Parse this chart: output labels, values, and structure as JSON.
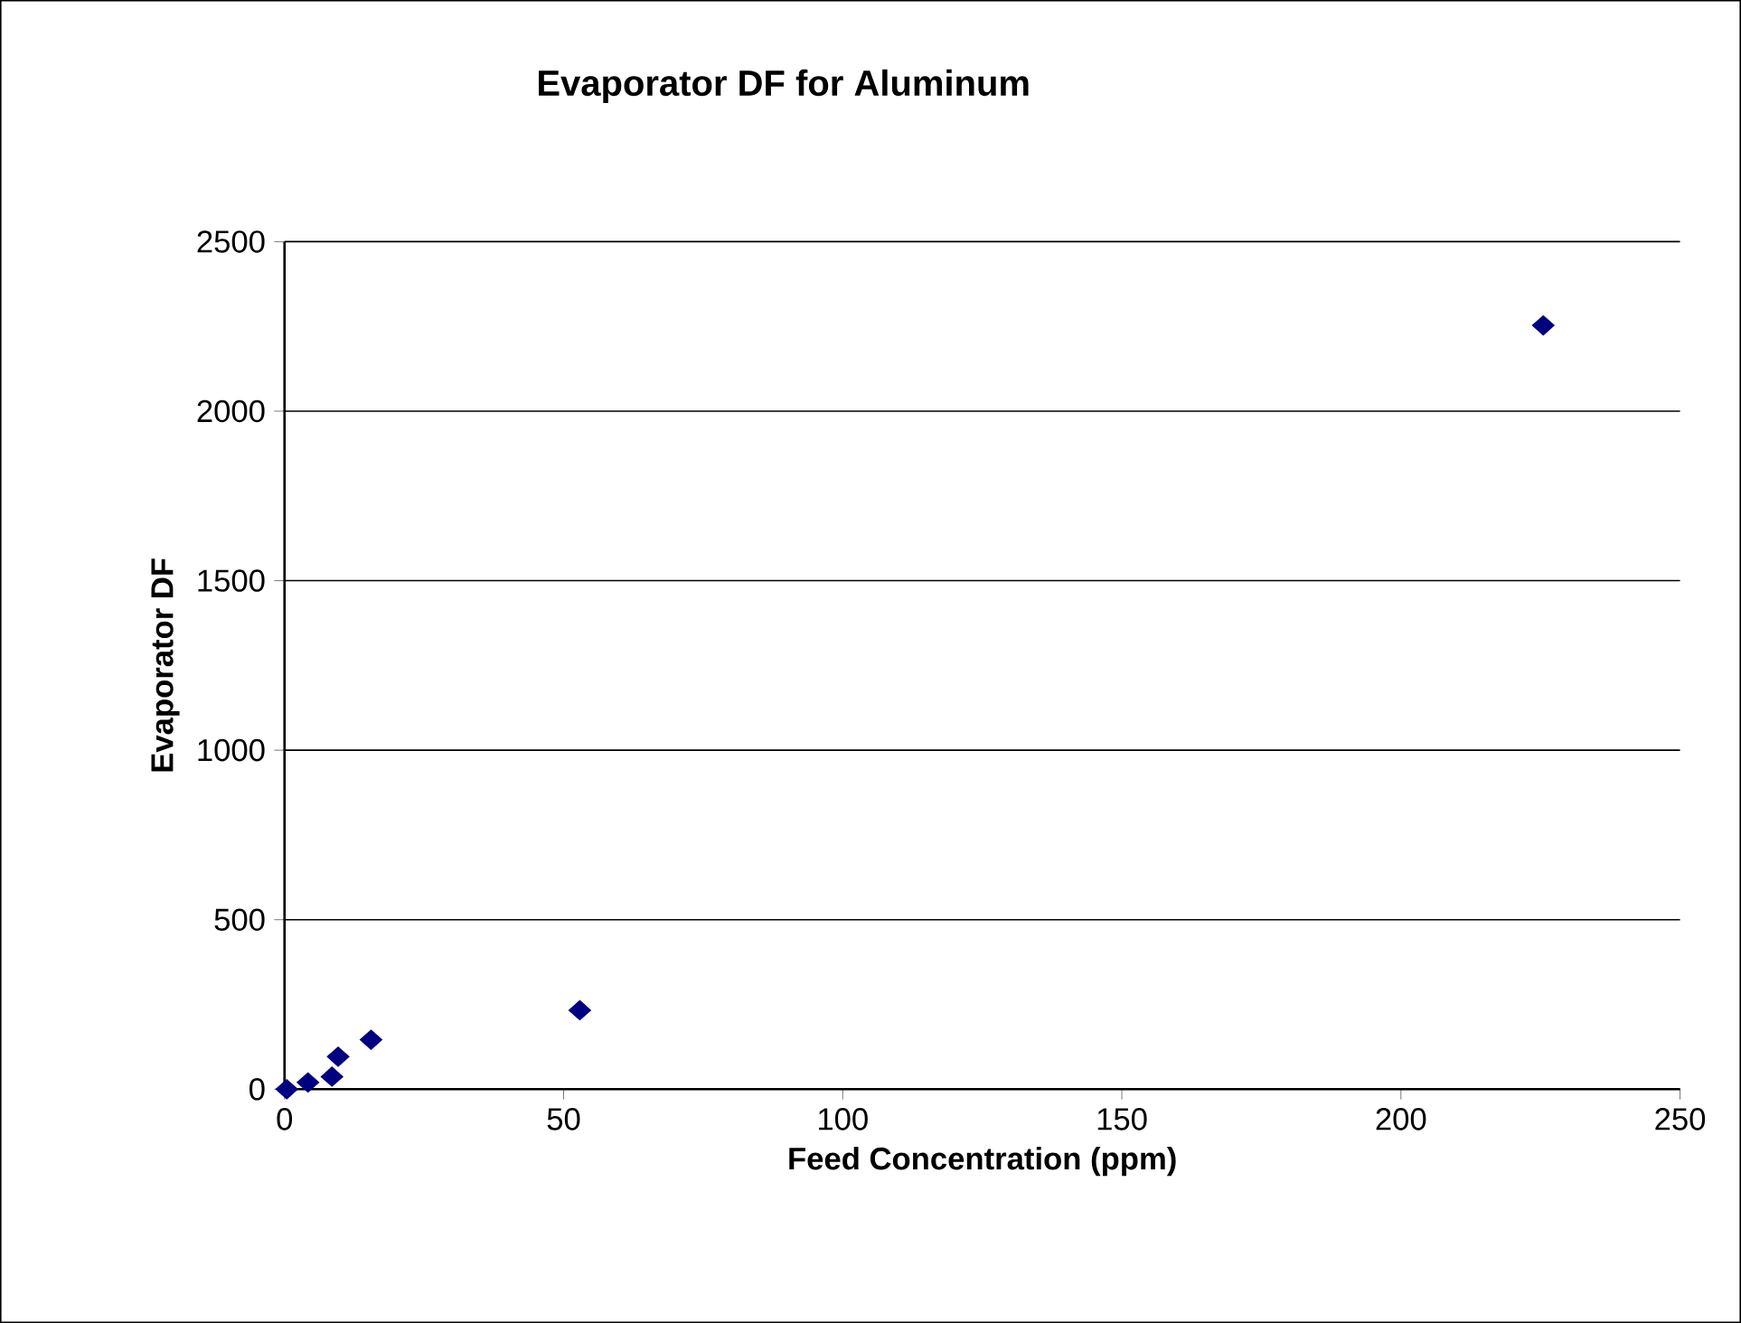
{
  "chart_data": {
    "type": "scatter",
    "title": "Evaporator DF for Aluminum",
    "xlabel": "Feed Concentration (ppm)",
    "ylabel": "Evaporator DF",
    "series": [
      {
        "color": "#000080",
        "x": [
          0.4,
          4.2,
          8.5,
          9.6,
          15.5,
          52.9,
          225.5
        ],
        "values": [
          0,
          20,
          37,
          96,
          146,
          233,
          2253
        ]
      }
    ],
    "xlim": [
      0,
      250
    ],
    "xticks": [
      0,
      50,
      100,
      150,
      200,
      250
    ],
    "ylim": [
      0,
      2500
    ],
    "yticks": [
      0,
      500,
      1000,
      1500,
      2000,
      2500
    ],
    "grid": "y",
    "marker": "diamond"
  }
}
